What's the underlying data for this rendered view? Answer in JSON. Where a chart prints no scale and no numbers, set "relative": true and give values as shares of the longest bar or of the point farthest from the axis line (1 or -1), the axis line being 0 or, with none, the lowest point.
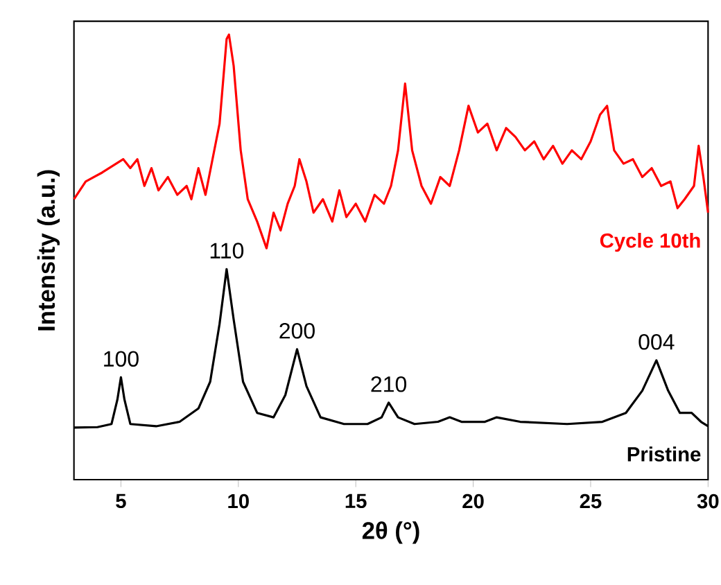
{
  "chart_data": {
    "type": "line",
    "relative": true,
    "xlabel": "2θ (°)",
    "ylabel": "Intensity (a.u.)",
    "xlim": [
      3,
      30
    ],
    "xticks": [
      5,
      10,
      15,
      20,
      25,
      30
    ],
    "series": [
      {
        "name": "Cycle 10th",
        "color": "#ff0000",
        "x": [
          3,
          3.5,
          4.2,
          4.8,
          5.1,
          5.4,
          5.7,
          6.0,
          6.3,
          6.6,
          7.0,
          7.4,
          7.8,
          8.0,
          8.3,
          8.6,
          8.9,
          9.2,
          9.5,
          9.6,
          9.8,
          10.1,
          10.4,
          10.8,
          11.2,
          11.5,
          11.8,
          12.1,
          12.4,
          12.6,
          12.9,
          13.2,
          13.6,
          14.0,
          14.3,
          14.6,
          15.0,
          15.4,
          15.8,
          16.2,
          16.5,
          16.8,
          17.1,
          17.4,
          17.8,
          18.2,
          18.6,
          19.0,
          19.4,
          19.8,
          20.2,
          20.6,
          21.0,
          21.4,
          21.8,
          22.2,
          22.6,
          23.0,
          23.4,
          23.8,
          24.2,
          24.6,
          25.0,
          25.4,
          25.7,
          26.0,
          26.4,
          26.8,
          27.2,
          27.6,
          28.0,
          28.4,
          28.7,
          29.0,
          29.4,
          29.6,
          29.8,
          30
        ],
        "values": [
          0.63,
          0.67,
          0.69,
          0.71,
          0.72,
          0.7,
          0.72,
          0.66,
          0.7,
          0.65,
          0.68,
          0.64,
          0.66,
          0.63,
          0.7,
          0.64,
          0.72,
          0.8,
          0.99,
          1.0,
          0.93,
          0.74,
          0.63,
          0.58,
          0.52,
          0.6,
          0.56,
          0.62,
          0.66,
          0.72,
          0.67,
          0.6,
          0.63,
          0.58,
          0.65,
          0.59,
          0.62,
          0.58,
          0.64,
          0.62,
          0.66,
          0.74,
          0.89,
          0.74,
          0.66,
          0.62,
          0.68,
          0.66,
          0.74,
          0.84,
          0.78,
          0.8,
          0.74,
          0.79,
          0.77,
          0.74,
          0.76,
          0.72,
          0.75,
          0.71,
          0.74,
          0.72,
          0.76,
          0.82,
          0.84,
          0.74,
          0.71,
          0.72,
          0.68,
          0.7,
          0.66,
          0.67,
          0.61,
          0.63,
          0.66,
          0.75,
          0.68,
          0.6
        ]
      },
      {
        "name": "Pristine",
        "color": "#000000",
        "x": [
          3,
          4,
          4.6,
          4.85,
          5.0,
          5.15,
          5.4,
          6.5,
          7.5,
          8.3,
          8.8,
          9.2,
          9.5,
          9.8,
          10.2,
          10.8,
          11.5,
          12.0,
          12.5,
          12.9,
          13.5,
          14.5,
          15.5,
          16.1,
          16.4,
          16.8,
          17.5,
          18.5,
          19.0,
          19.5,
          20.5,
          21,
          22,
          24,
          25.5,
          26.5,
          27.2,
          27.8,
          28.3,
          28.8,
          29.3,
          29.7,
          30
        ],
        "values": [
          0.117,
          0.118,
          0.125,
          0.18,
          0.23,
          0.18,
          0.125,
          0.12,
          0.13,
          0.16,
          0.22,
          0.35,
          0.473,
          0.36,
          0.22,
          0.15,
          0.14,
          0.19,
          0.293,
          0.21,
          0.14,
          0.125,
          0.125,
          0.14,
          0.173,
          0.14,
          0.125,
          0.13,
          0.14,
          0.13,
          0.13,
          0.14,
          0.13,
          0.125,
          0.13,
          0.15,
          0.2,
          0.268,
          0.2,
          0.15,
          0.15,
          0.13,
          0.12
        ]
      }
    ],
    "annotations": [
      {
        "text": "100",
        "x": 5.0,
        "y": 0.23
      },
      {
        "text": "110",
        "x": 9.5,
        "y": 0.473
      },
      {
        "text": "200",
        "x": 12.5,
        "y": 0.293
      },
      {
        "text": "210",
        "x": 16.4,
        "y": 0.173
      },
      {
        "text": "004",
        "x": 27.8,
        "y": 0.268
      }
    ]
  }
}
